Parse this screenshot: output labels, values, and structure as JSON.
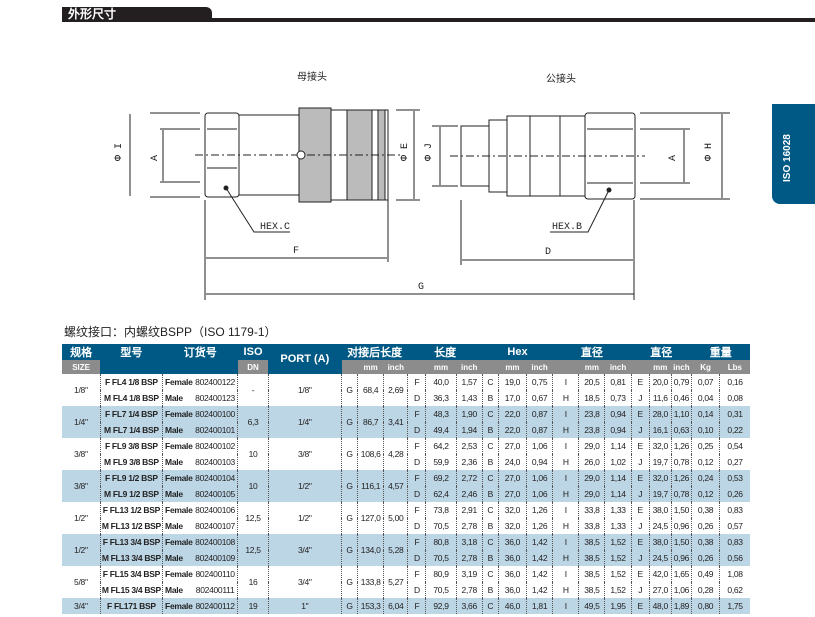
{
  "section_title": "外形尺寸",
  "side_tab": "ISO 16028",
  "drawing": {
    "female_label": "母接头",
    "male_label": "公接头",
    "dims": {
      "phi_i": "Φ I",
      "a_left": "A",
      "phi_e": "Φ E",
      "phi_j": "Φ J",
      "a_right": "A",
      "phi_h": "Φ H",
      "hex_c": "HEX.C",
      "hex_b": "HEX.B",
      "f": "F",
      "d": "D",
      "g": "G"
    }
  },
  "table_title": "螺纹接口：内螺纹BSPP（ISO 1179-1）",
  "header": {
    "size": "规格",
    "size_sub": "SIZE",
    "model": "型号",
    "order": "订货号",
    "iso": "ISO",
    "iso_sub": "DN",
    "port": "PORT (A)",
    "mated_length": "对接后长度",
    "length": "长度",
    "hex": "Hex",
    "dia1": "直径",
    "dia2": "直径",
    "weight": "重量",
    "mm": "mm",
    "inch": "inch",
    "kg": "Kg",
    "lbs": "Lbs"
  },
  "colors": {
    "header_blue": "#005985",
    "header_gray": "#8c8c8c",
    "row_alt": "#bdd6e6"
  },
  "groups": [
    {
      "size": "1/8\"",
      "iso": "-",
      "port": "1/8\"",
      "g": "G",
      "g_mm": "68,4",
      "g_inch": "2,69",
      "rows": [
        {
          "model": "F FL4 1/8 BSP",
          "sex": "Female",
          "order": "802400122",
          "l": "F",
          "l_mm": "40,0",
          "l_in": "1,57",
          "hx": "C",
          "hx_mm": "19,0",
          "hx_in": "0,75",
          "d1": "I",
          "d1_mm": "20,5",
          "d1_in": "0,81",
          "d2": "E",
          "d2_mm": "20,0",
          "d2_in": "0,79",
          "kg": "0,07",
          "lbs": "0,16"
        },
        {
          "model": "M FL4 1/8 BSP",
          "sex": "Male",
          "order": "802400123",
          "l": "D",
          "l_mm": "36,3",
          "l_in": "1,43",
          "hx": "B",
          "hx_mm": "17,0",
          "hx_in": "0,67",
          "d1": "H",
          "d1_mm": "18,5",
          "d1_in": "0,73",
          "d2": "J",
          "d2_mm": "11,6",
          "d2_in": "0,46",
          "kg": "0,04",
          "lbs": "0,08"
        }
      ]
    },
    {
      "size": "1/4\"",
      "iso": "6,3",
      "port": "1/4\"",
      "g": "G",
      "g_mm": "86,7",
      "g_inch": "3,41",
      "rows": [
        {
          "model": "F FL7 1/4 BSP",
          "sex": "Female",
          "order": "802400100",
          "l": "F",
          "l_mm": "48,3",
          "l_in": "1,90",
          "hx": "C",
          "hx_mm": "22,0",
          "hx_in": "0,87",
          "d1": "I",
          "d1_mm": "23,8",
          "d1_in": "0,94",
          "d2": "E",
          "d2_mm": "28,0",
          "d2_in": "1,10",
          "kg": "0,14",
          "lbs": "0,31"
        },
        {
          "model": "M FL7 1/4 BSP",
          "sex": "Male",
          "order": "802400101",
          "l": "D",
          "l_mm": "49,4",
          "l_in": "1,94",
          "hx": "B",
          "hx_mm": "22,0",
          "hx_in": "0,87",
          "d1": "H",
          "d1_mm": "23,8",
          "d1_in": "0,94",
          "d2": "J",
          "d2_mm": "16,1",
          "d2_in": "0,63",
          "kg": "0,10",
          "lbs": "0,22"
        }
      ]
    },
    {
      "size": "3/8\"",
      "iso": "10",
      "port": "3/8\"",
      "g": "G",
      "g_mm": "108,6",
      "g_inch": "4,28",
      "rows": [
        {
          "model": "F FL9 3/8 BSP",
          "sex": "Female",
          "order": "802400102",
          "l": "F",
          "l_mm": "64,2",
          "l_in": "2,53",
          "hx": "C",
          "hx_mm": "27,0",
          "hx_in": "1,06",
          "d1": "I",
          "d1_mm": "29,0",
          "d1_in": "1,14",
          "d2": "E",
          "d2_mm": "32,0",
          "d2_in": "1,26",
          "kg": "0,25",
          "lbs": "0,54"
        },
        {
          "model": "M FL9 3/8 BSP",
          "sex": "Male",
          "order": "802400103",
          "l": "D",
          "l_mm": "59,9",
          "l_in": "2,36",
          "hx": "B",
          "hx_mm": "24,0",
          "hx_in": "0,94",
          "d1": "H",
          "d1_mm": "26,0",
          "d1_in": "1,02",
          "d2": "J",
          "d2_mm": "19,7",
          "d2_in": "0,78",
          "kg": "0,12",
          "lbs": "0,27"
        }
      ]
    },
    {
      "size": "3/8\"",
      "iso": "10",
      "port": "1/2\"",
      "g": "G",
      "g_mm": "116,1",
      "g_inch": "4,57",
      "rows": [
        {
          "model": "F FL9 1/2 BSP",
          "sex": "Female",
          "order": "802400104",
          "l": "F",
          "l_mm": "69,2",
          "l_in": "2,72",
          "hx": "C",
          "hx_mm": "27,0",
          "hx_in": "1,06",
          "d1": "I",
          "d1_mm": "29,0",
          "d1_in": "1,14",
          "d2": "E",
          "d2_mm": "32,0",
          "d2_in": "1,26",
          "kg": "0,24",
          "lbs": "0,53"
        },
        {
          "model": "M FL9 1/2 BSP",
          "sex": "Male",
          "order": "802400105",
          "l": "D",
          "l_mm": "62,4",
          "l_in": "2,46",
          "hx": "B",
          "hx_mm": "27,0",
          "hx_in": "1,06",
          "d1": "H",
          "d1_mm": "29,0",
          "d1_in": "1,14",
          "d2": "J",
          "d2_mm": "19,7",
          "d2_in": "0,78",
          "kg": "0,12",
          "lbs": "0,26"
        }
      ]
    },
    {
      "size": "1/2\"",
      "iso": "12,5",
      "port": "1/2\"",
      "g": "G",
      "g_mm": "127,0",
      "g_inch": "5,00",
      "rows": [
        {
          "model": "F FL13 1/2 BSP",
          "sex": "Female",
          "order": "802400106",
          "l": "F",
          "l_mm": "73,8",
          "l_in": "2,91",
          "hx": "C",
          "hx_mm": "32,0",
          "hx_in": "1,26",
          "d1": "I",
          "d1_mm": "33,8",
          "d1_in": "1,33",
          "d2": "E",
          "d2_mm": "38,0",
          "d2_in": "1,50",
          "kg": "0,38",
          "lbs": "0,83"
        },
        {
          "model": "M FL13 1/2 BSP",
          "sex": "Male",
          "order": "802400107",
          "l": "D",
          "l_mm": "70,5",
          "l_in": "2,78",
          "hx": "B",
          "hx_mm": "32,0",
          "hx_in": "1,26",
          "d1": "H",
          "d1_mm": "33,8",
          "d1_in": "1,33",
          "d2": "J",
          "d2_mm": "24,5",
          "d2_in": "0,96",
          "kg": "0,26",
          "lbs": "0,57"
        }
      ]
    },
    {
      "size": "1/2\"",
      "iso": "12,5",
      "port": "3/4\"",
      "g": "G",
      "g_mm": "134,0",
      "g_inch": "5,28",
      "rows": [
        {
          "model": "F FL13 3/4 BSP",
          "sex": "Female",
          "order": "802400108",
          "l": "F",
          "l_mm": "80,8",
          "l_in": "3,18",
          "hx": "C",
          "hx_mm": "36,0",
          "hx_in": "1,42",
          "d1": "I",
          "d1_mm": "38,5",
          "d1_in": "1,52",
          "d2": "E",
          "d2_mm": "38,0",
          "d2_in": "1,50",
          "kg": "0,38",
          "lbs": "0,83"
        },
        {
          "model": "M FL13 3/4 BSP",
          "sex": "Male",
          "order": "802400109",
          "l": "D",
          "l_mm": "70,5",
          "l_in": "2,78",
          "hx": "B",
          "hx_mm": "36,0",
          "hx_in": "1,42",
          "d1": "H",
          "d1_mm": "38,5",
          "d1_in": "1,52",
          "d2": "J",
          "d2_mm": "24,5",
          "d2_in": "0,96",
          "kg": "0,26",
          "lbs": "0,56"
        }
      ]
    },
    {
      "size": "5/8\"",
      "iso": "16",
      "port": "3/4\"",
      "g": "G",
      "g_mm": "133,8",
      "g_inch": "5,27",
      "rows": [
        {
          "model": "F FL15 3/4 BSP",
          "sex": "Female",
          "order": "802400110",
          "l": "F",
          "l_mm": "80,9",
          "l_in": "3,19",
          "hx": "C",
          "hx_mm": "36,0",
          "hx_in": "1,42",
          "d1": "I",
          "d1_mm": "38,5",
          "d1_in": "1,52",
          "d2": "E",
          "d2_mm": "42,0",
          "d2_in": "1,65",
          "kg": "0,49",
          "lbs": "1,08"
        },
        {
          "model": "M FL15 3/4 BSP",
          "sex": "Male",
          "order": "802400111",
          "l": "D",
          "l_mm": "70,5",
          "l_in": "2,78",
          "hx": "B",
          "hx_mm": "36,0",
          "hx_in": "1,42",
          "d1": "H",
          "d1_mm": "38,5",
          "d1_in": "1,52",
          "d2": "J",
          "d2_mm": "27,0",
          "d2_in": "1,06",
          "kg": "0,28",
          "lbs": "0,62"
        }
      ]
    },
    {
      "size": "3/4\"",
      "iso": "19",
      "port": "1\"",
      "g": "G",
      "g_mm": "153,3",
      "g_inch": "6,04",
      "rows": [
        {
          "model": "F FL171 BSP",
          "sex": "Female",
          "order": "802400112",
          "l": "F",
          "l_mm": "92,9",
          "l_in": "3,66",
          "hx": "C",
          "hx_mm": "46,0",
          "hx_in": "1,81",
          "d1": "I",
          "d1_mm": "49,5",
          "d1_in": "1,95",
          "d2": "E",
          "d2_mm": "48,0",
          "d2_in": "1,89",
          "kg": "0,80",
          "lbs": "1,75"
        }
      ]
    }
  ]
}
